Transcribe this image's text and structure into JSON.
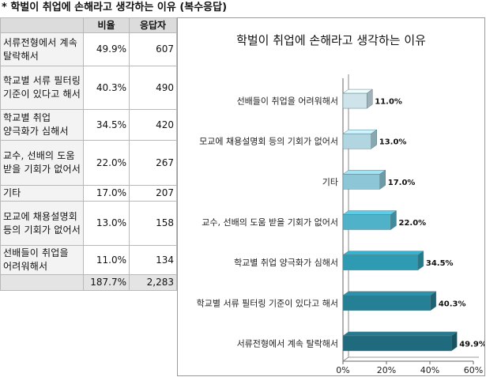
{
  "page_title": "* 학벌이 취업에 손해라고 생각하는 이유 (복수응답)",
  "table": {
    "headers": [
      "",
      "비율",
      "응답자"
    ],
    "rows": [
      {
        "reason": "서류전형에서 계속 탈락해서",
        "ratio": "49.9%",
        "count": "607"
      },
      {
        "reason": "학교별 서류 필터링 기준이 있다고 해서",
        "ratio": "40.3%",
        "count": "490"
      },
      {
        "reason": "학교별 취업 양극화가 심해서",
        "ratio": "34.5%",
        "count": "420"
      },
      {
        "reason": "교수, 선배의 도움 받을 기회가 없어서",
        "ratio": "22.0%",
        "count": "267"
      },
      {
        "reason": "기타",
        "ratio": "17.0%",
        "count": "207"
      },
      {
        "reason": "모교에 채용설명회 등의 기회가 없어서",
        "ratio": "13.0%",
        "count": "158"
      },
      {
        "reason": "선배들이 취업을 어려워해서",
        "ratio": "11.0%",
        "count": "134"
      }
    ],
    "total": {
      "reason": "",
      "ratio": "187.7%",
      "count": "2,283"
    }
  },
  "chart_data": {
    "type": "bar",
    "orientation": "horizontal",
    "title": "학벌이 취업에 손해라고 생각하는 이유",
    "categories": [
      "선배들이 취업을 어려워해서",
      "모교에 채용설명회 등의 기회가 없어서",
      "기타",
      "교수, 선배의 도움 받을 기회가 없어서",
      "학교별 취업 양극화가 심해서",
      "학교별 서류 필터링 기준이 있다고 해서",
      "서류전형에서 계속 탈락해서"
    ],
    "values": [
      11.0,
      13.0,
      17.0,
      22.0,
      34.5,
      40.3,
      49.9
    ],
    "value_labels": [
      "11.0%",
      "13.0%",
      "17.0%",
      "22.0%",
      "34.5%",
      "40.3%",
      "49.9%"
    ],
    "xlim": [
      0,
      60
    ],
    "xticks": [
      0,
      20,
      40,
      60
    ],
    "xtick_labels": [
      "0%",
      "20%",
      "40%",
      "60%"
    ],
    "bar_colors": [
      "#cfe3ea",
      "#b1d6e2",
      "#8dc6d6",
      "#4fb2c9",
      "#2e9bb2",
      "#257f95",
      "#1f6a7c"
    ],
    "grid": false,
    "legend": "none"
  }
}
